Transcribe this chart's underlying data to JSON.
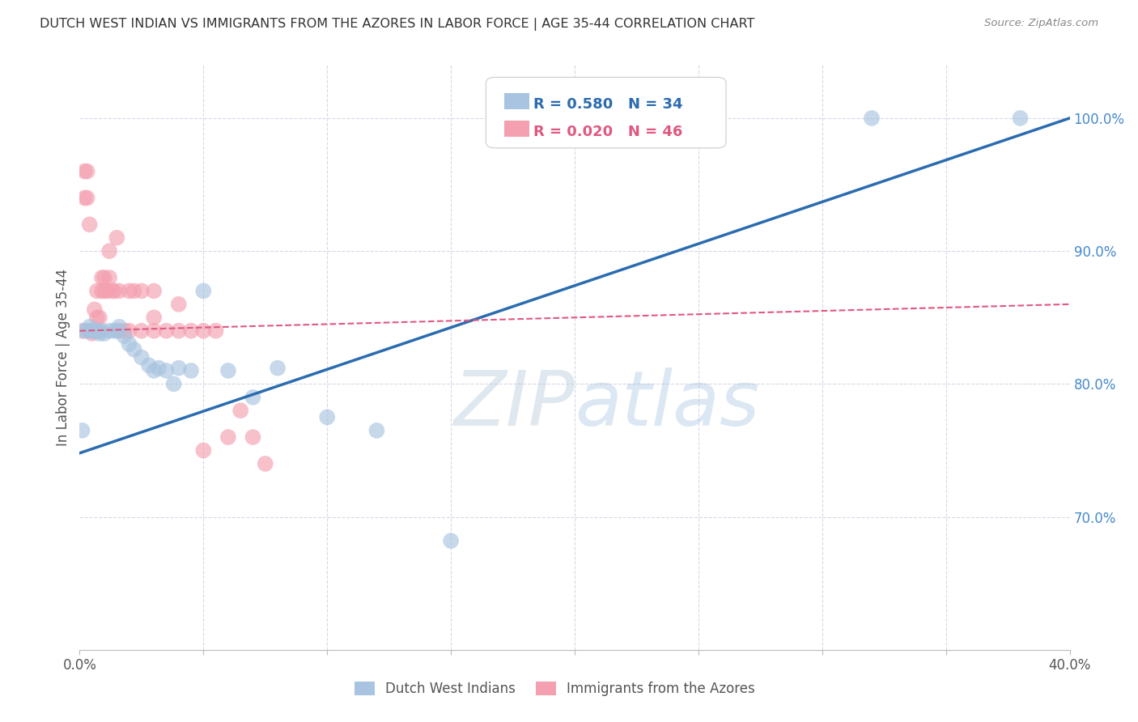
{
  "title": "DUTCH WEST INDIAN VS IMMIGRANTS FROM THE AZORES IN LABOR FORCE | AGE 35-44 CORRELATION CHART",
  "source": "Source: ZipAtlas.com",
  "ylabel": "In Labor Force | Age 35-44",
  "xlim": [
    0.0,
    0.4
  ],
  "ylim": [
    0.6,
    1.04
  ],
  "blue_R": 0.58,
  "blue_N": 34,
  "pink_R": 0.02,
  "pink_N": 46,
  "blue_label": "Dutch West Indians",
  "pink_label": "Immigrants from the Azores",
  "blue_color": "#a8c4e0",
  "pink_color": "#f4a0b0",
  "blue_line_color": "#2b6cb0",
  "pink_line_color": "#e05880",
  "watermark_ZIP": "ZIP",
  "watermark_atlas": "atlas",
  "background_color": "#FFFFFF",
  "grid_color": "#d8d8e8",
  "blue_x": [
    0.001,
    0.002,
    0.003,
    0.004,
    0.005,
    0.006,
    0.007,
    0.008,
    0.009,
    0.01,
    0.012,
    0.014,
    0.015,
    0.016,
    0.018,
    0.02,
    0.022,
    0.025,
    0.028,
    0.03,
    0.032,
    0.035,
    0.038,
    0.04,
    0.045,
    0.05,
    0.06,
    0.07,
    0.08,
    0.1,
    0.12,
    0.15,
    0.32,
    0.38
  ],
  "blue_y": [
    0.765,
    0.84,
    0.84,
    0.843,
    0.84,
    0.84,
    0.84,
    0.838,
    0.84,
    0.838,
    0.84,
    0.84,
    0.84,
    0.843,
    0.836,
    0.83,
    0.826,
    0.82,
    0.814,
    0.81,
    0.812,
    0.81,
    0.8,
    0.812,
    0.81,
    0.87,
    0.81,
    0.79,
    0.812,
    0.775,
    0.765,
    0.682,
    1.0,
    1.0
  ],
  "pink_x": [
    0.001,
    0.002,
    0.002,
    0.003,
    0.003,
    0.004,
    0.004,
    0.005,
    0.006,
    0.006,
    0.007,
    0.007,
    0.008,
    0.008,
    0.009,
    0.009,
    0.01,
    0.01,
    0.011,
    0.012,
    0.012,
    0.013,
    0.014,
    0.015,
    0.016,
    0.016,
    0.018,
    0.02,
    0.02,
    0.022,
    0.025,
    0.025,
    0.03,
    0.03,
    0.03,
    0.035,
    0.04,
    0.04,
    0.045,
    0.05,
    0.05,
    0.055,
    0.06,
    0.065,
    0.07,
    0.075
  ],
  "pink_y": [
    0.84,
    0.96,
    0.94,
    0.94,
    0.96,
    0.84,
    0.92,
    0.838,
    0.84,
    0.856,
    0.85,
    0.87,
    0.84,
    0.85,
    0.87,
    0.88,
    0.88,
    0.87,
    0.87,
    0.88,
    0.9,
    0.87,
    0.87,
    0.91,
    0.84,
    0.87,
    0.84,
    0.84,
    0.87,
    0.87,
    0.84,
    0.87,
    0.84,
    0.85,
    0.87,
    0.84,
    0.84,
    0.86,
    0.84,
    0.84,
    0.75,
    0.84,
    0.76,
    0.78,
    0.76,
    0.74
  ],
  "blue_trend": [
    0.0,
    0.4,
    0.748,
    1.0
  ],
  "pink_trend": [
    0.0,
    0.4,
    0.84,
    0.86
  ]
}
